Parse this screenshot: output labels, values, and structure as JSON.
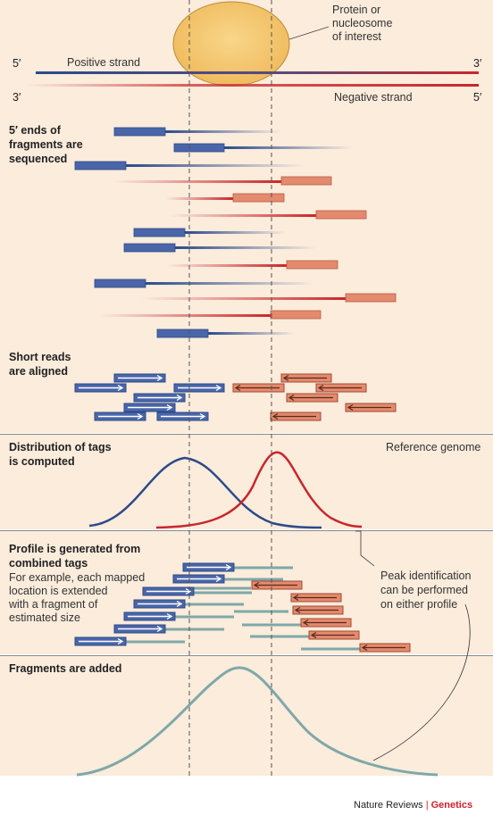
{
  "colors": {
    "background": "#fbecdc",
    "positive": "#2b4a8a",
    "negative": "#c9262c",
    "blue_box": "#4a66a8",
    "salmon_box": "#e38a6f",
    "teal": "#7fa8a8",
    "protein": "#f2c46b"
  },
  "header": {
    "protein_label": [
      "Protein or",
      "nucleosome",
      "of interest"
    ],
    "positive_strand": "Positive strand",
    "negative_strand": "Negative strand",
    "five_prime_left": "5′",
    "three_prime_right": "3′",
    "three_prime_left": "3′",
    "five_prime_right": "5′"
  },
  "panels": {
    "sequenced": [
      "5′ ends of",
      "fragments are",
      "sequenced"
    ],
    "aligned": [
      "Short reads",
      "are aligned"
    ],
    "distribution": [
      "Distribution of tags",
      "is computed"
    ],
    "reference": "Reference genome",
    "profile_title": [
      "Profile is generated from",
      "combined tags"
    ],
    "profile_desc": [
      "For example, each mapped",
      "location is extended",
      "with a fragment of",
      "estimated size"
    ],
    "peak_note": [
      "Peak identification",
      "can be performed",
      "on either profile"
    ],
    "added": "Fragments are added"
  },
  "credit": {
    "journal": "Nature Reviews",
    "separator": "|",
    "section": "Genetics"
  }
}
